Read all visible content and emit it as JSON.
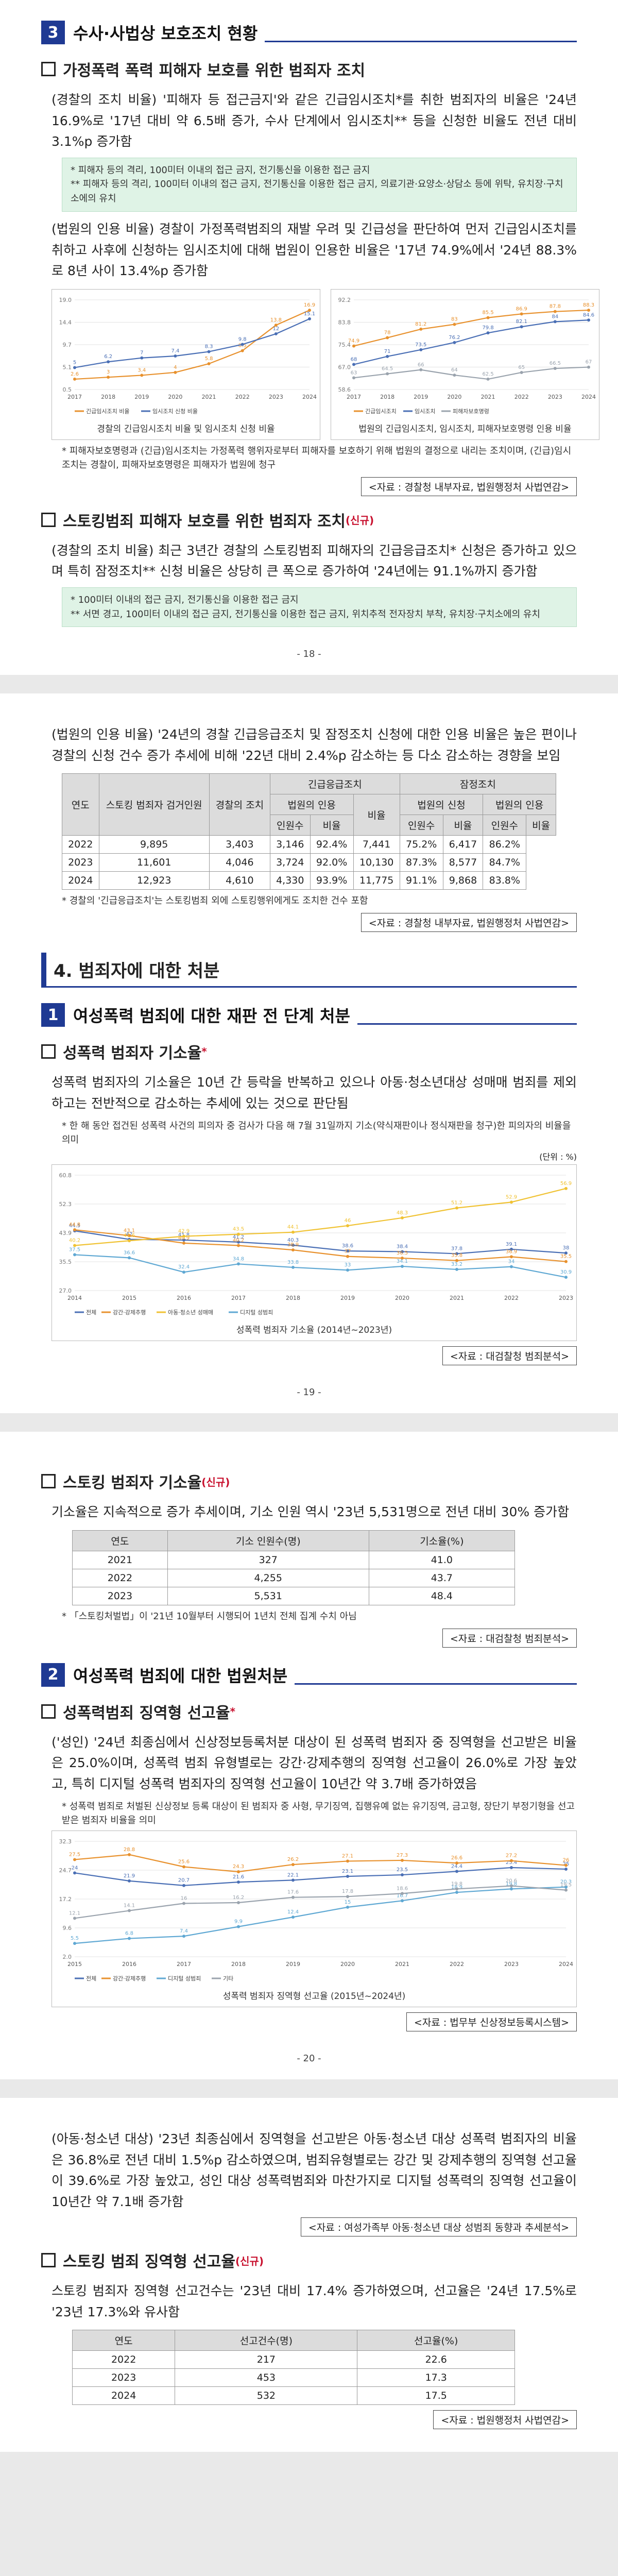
{
  "page18": {
    "section_num": "3",
    "section_title": "수사·사법상 보호조치 현황",
    "sub1": "가정폭력 폭력 피해자 보호를 위한 범죄자 조치",
    "p1": "(경찰의 조치 비율) '피해자 등 접근금지'와 같은 긴급임시조치*를 취한 범죄자의 비율은 '24년 16.9%로 '17년 대비 약 6.5배 증가, 수사 단계에서 임시조치** 등을 신청한 비율도 전년 대비 3.1%p 증가함",
    "green1": "* 피해자 등의 격리, 100미터 이내의 접근 금지, 전기통신을 이용한 접근 금지\n** 피해자 등의 격리, 100미터 이내의 접근 금지, 전기통신을 이용한 접근 금지, 의료기관·요양소·상담소 등에 위탁, 유치장·구치소에의 유치",
    "p2": "(법원의 인용 비율) 경찰이 가정폭력범죄의 재발 우려 및 긴급성을 판단하여 먼저 긴급임시조치를 취하고 사후에 신청하는 임시조치에 대해 법원이 인용한 비율은 '17년 74.9%에서 '24년 88.3%로 8년 사이 13.4%p 증가함",
    "chart1_caption": "경찰의 긴급임시조치 비율 및 임시조치 신청 비율",
    "chart2_caption": "법원의 긴급임시조치, 임시조치, 피해자보호명령 인용 비율",
    "note1": "* 피해자보호명령과 (긴급)임시조치는 가정폭력 행위자로부터 피해자를 보호하기 위해 법원의 결정으로 내리는 조치이며, (긴급)임시조치는 경찰이, 피해자보호명령은 피해자가 법원에 청구",
    "source1": "<자료 : 경찰청 내부자료, 법원행정처 사법연감>",
    "sub2": "스토킹범죄 피해자 보호를 위한 범죄자 조치",
    "sub2_sup": "(신규)",
    "p3": "(경찰의 조치 비율) 최근 3년간 경찰의 스토킹범죄 피해자의 긴급응급조치* 신청은 증가하고 있으며 특히 잠정조치** 신청 비율은 상당히 큰 폭으로 증가하여 '24년에는 91.1%까지 증가함",
    "green2": "* 100미터 이내의 접근 금지, 전기통신을 이용한 접근 금지\n** 서면 경고, 100미터 이내의 접근 금지, 전기통신을 이용한 접근 금지, 위치추적 전자장치 부착, 유치장·구치소에의 유치",
    "page_num": "- 18 -"
  },
  "page19": {
    "p1": "(법원의 인용 비율) '24년의 경찰 긴급응급조치 및 잠정조치 신청에 대한 인용 비율은 높은 편이나 경찰의 신청 건수 증가 추세에 비해 '22년 대비 2.4%p 감소하는 등 다소 감소하는 경향을 보임",
    "table_headers": [
      "연도",
      "스토킹 범죄자 검거인원(명)",
      "경찰의 조치",
      "긴급응급조치 인원수",
      "긴급응급조치 비율",
      "긴급응급조치 법원인용 인원수",
      "긴급응급조치 법원인용 비율",
      "잠정조치 인원수",
      "잠정조치 비율",
      "잠정조치 법원인용 인원수",
      "잠정조치 법원인용 비율"
    ],
    "table_rows": [
      [
        "2022",
        "9,895",
        "3,403",
        "3,146",
        "92.4%",
        "7,441",
        "75.2%",
        "6,417",
        "86.2%"
      ],
      [
        "2023",
        "11,601",
        "4,046",
        "3,724",
        "92.0%",
        "10,130",
        "87.3%",
        "8,577",
        "84.7%"
      ],
      [
        "2024",
        "12,923",
        "4,610",
        "4,330",
        "93.9%",
        "11,775",
        "91.1%",
        "9,868",
        "83.8%"
      ]
    ],
    "th_year": "연도",
    "th_arrest": "스토킹 범죄자 검거인원",
    "th_police": "경찰의 조치",
    "th_emg": "긴급응급조치",
    "th_tmp": "잠정조치",
    "th_apply": "법원의 신청",
    "th_court": "법원의 인용",
    "th_cnt": "인원수",
    "th_rate": "비율",
    "note": "* 경찰의 '긴급응급조치'는 스토킹범죄 외에 스토킹행위에게도 조치한 건수 포함",
    "source": "<자료 : 경찰청 내부자료, 법원행정처 사법연감>",
    "chapter": "4. 범죄자에 대한 처분",
    "sec_num": "1",
    "sec_title": "여성폭력 범죄에 대한 재판 전 단계 처분",
    "sub": "성폭력 범죄자 기소율",
    "sub_sup": "*",
    "p2": "성폭력 범죄자의 기소율은 10년 간 등락을 반복하고 있으나 아동·청소년대상 성매매 범죄를 제외하고는 전반적으로 감소하는 추세에 있는 것으로 판단됨",
    "note2": "* 한 해 동안 접건된 성폭력 사건의 피의자 중 검사가 다음 해 7월 31일까지 기소(약식재판이나 정식재판을 청구)한 피의자의 비율을 의미",
    "unit": "(단위 : %)",
    "chart_caption": "성폭력 범죄자 기소율 (2014년~2023년)",
    "source2": "<자료 : 대검찰청 범죄분석>",
    "page_num": "- 19 -"
  },
  "page20": {
    "sub1": "스토킹 범죄자 기소율",
    "sub1_sup": "(신규)",
    "p1": "기소율은 지속적으로 증가 추세이며, 기소 인원 역시 '23년 5,531명으로 전년 대비 30% 증가함",
    "t_headers": [
      "연도",
      "기소 인원수(명)",
      "기소율(%)"
    ],
    "t_rows": [
      [
        "2021",
        "327",
        "41.0"
      ],
      [
        "2022",
        "4,255",
        "43.7"
      ],
      [
        "2023",
        "5,531",
        "48.4"
      ]
    ],
    "note1": "* 「스토킹처벌법」이 '21년 10월부터 시행되어 1년치 전체 집계 수치 아님",
    "source1": "<자료 : 대검찰청 범죄분석>",
    "sec_num": "2",
    "sec_title": "여성폭력 범죄에 대한 법원처분",
    "sub2": "성폭력범죄 징역형 선고율",
    "sub2_sup": "*",
    "p2": "('성인) '24년 최종심에서 신상정보등록처분 대상이 된 성폭력 범죄자 중 징역형을 선고받은 비율은 25.0%이며, 성폭력 범죄 유형별로는 강간·강제추행의 징역형 선고율이 26.0%로 가장 높았고, 특히 디지털 성폭력 범죄자의 징역형 선고율이 10년간 약 3.7배 증가하였음",
    "note2": "* 성폭력 범죄로 처벌된 신상정보 등록 대상이 된 범죄자 중 사형, 무기징역, 집행유예 없는 유기징역, 금고형, 장단기 부정기형을 선고받은 범죄자 비율을 의미",
    "chart_caption": "성폭력 범죄자 징역형 선고율 (2015년~2024년)",
    "source2": "<자료 : 법무부 신상정보등록시스템>",
    "page_num": "- 20 -"
  },
  "page21": {
    "p1": "(아동·청소년 대상) '23년 최종심에서 징역형을 선고받은 아동·청소년 대상 성폭력 범죄자의 비율은 36.8%로 전년 대비 1.5%p 감소하였으며, 범죄유형별로는 강간 및 강제추행의 징역형 선고율이 39.6%로 가장 높았고, 성인 대상 성폭력범죄와 마찬가지로 디지털 성폭력의 징역형 선고율이 10년간 약 7.1배 증가함",
    "source1": "<자료 : 여성가족부 아동·청소년 대상 성범죄 동향과 추세분석>",
    "sub": "스토킹 범죄 징역형 선고율",
    "sub_sup": "(신규)",
    "p2": "스토킹 범죄자 징역형 선고건수는 '23년 대비 17.4% 증가하였으며, 선고율은 '24년 17.5%로 '23년 17.3%와 유사함",
    "t_headers": [
      "연도",
      "선고건수(명)",
      "선고율(%)"
    ],
    "t_rows": [
      [
        "2022",
        "217",
        "22.6"
      ],
      [
        "2023",
        "453",
        "17.3"
      ],
      [
        "2024",
        "532",
        "17.5"
      ]
    ],
    "source2": "<자료 : 법원행정처 사법연감>"
  },
  "chart_data": [
    {
      "type": "line",
      "title": "경찰의 긴급임시조치 비율 및 임시조치 신청 비율",
      "x": [
        "2017",
        "2018",
        "2019",
        "2020",
        "2021",
        "2022",
        "2023",
        "2024"
      ],
      "series": [
        {
          "name": "긴급임시조치 비율",
          "values": [
            2.6,
            3.0,
            3.4,
            4.0,
            5.8,
            8.5,
            13.8,
            16.9
          ],
          "color": "#e8912d"
        },
        {
          "name": "임시조치 신청 비율",
          "values": [
            5.0,
            6.2,
            7.0,
            7.4,
            8.3,
            9.8,
            12.0,
            15.1
          ],
          "color": "#4a6fb5"
        }
      ]
    },
    {
      "type": "line",
      "title": "법원의 긴급임시조치, 임시조치, 피해자보호명령 인용 비율",
      "x": [
        "2017",
        "2018",
        "2019",
        "2020",
        "2021",
        "2022",
        "2023",
        "2024"
      ],
      "series": [
        {
          "name": "긴급임시조치",
          "values": [
            74.9,
            78.0,
            81.2,
            83.0,
            85.5,
            86.9,
            87.8,
            88.3
          ],
          "color": "#e8912d"
        },
        {
          "name": "임시조치",
          "values": [
            68.0,
            71.0,
            73.5,
            76.2,
            79.8,
            82.1,
            84.0,
            84.6
          ],
          "color": "#4a6fb5"
        },
        {
          "name": "피해자보호명령",
          "values": [
            63.0,
            64.5,
            66.0,
            64.0,
            62.5,
            65.0,
            66.5,
            67.0
          ],
          "color": "#9aa3ad"
        }
      ]
    },
    {
      "type": "line",
      "title": "성폭력 범죄자 기소율 (2014년~2023년)",
      "x": [
        "2014",
        "2015",
        "2016",
        "2017",
        "2018",
        "2019",
        "2020",
        "2021",
        "2022",
        "2023"
      ],
      "series": [
        {
          "name": "전체",
          "values": [
            44.5,
            42.0,
            41.8,
            41.2,
            40.3,
            38.6,
            38.4,
            37.8,
            39.1,
            38.0
          ],
          "color": "#4a6fb5"
        },
        {
          "name": "강간·강제추행",
          "values": [
            44.8,
            43.1,
            40.9,
            40.2,
            38.9,
            37.0,
            36.5,
            35.8,
            36.9,
            35.5
          ],
          "color": "#e8912d"
        },
        {
          "name": "아동·청소년 성매매",
          "values": [
            40.2,
            41.6,
            42.9,
            43.5,
            44.1,
            46.0,
            48.3,
            51.2,
            52.9,
            56.9
          ],
          "color": "#f0c232"
        },
        {
          "name": "디지털 성범죄",
          "values": [
            37.5,
            36.6,
            32.4,
            34.8,
            33.8,
            33.0,
            34.1,
            33.2,
            34.0,
            30.9
          ],
          "color": "#5fa8d3"
        }
      ]
    },
    {
      "type": "line",
      "title": "성폭력 범죄자 징역형 선고율 (2015년~2024년)",
      "x": [
        "2015",
        "2016",
        "2017",
        "2018",
        "2019",
        "2020",
        "2021",
        "2022",
        "2023",
        "2024"
      ],
      "series": [
        {
          "name": "전체",
          "values": [
            24.0,
            21.9,
            20.7,
            21.6,
            22.1,
            23.1,
            23.5,
            24.4,
            25.4,
            25.0
          ],
          "color": "#4a6fb5"
        },
        {
          "name": "강간·강제추행",
          "values": [
            27.5,
            28.8,
            25.6,
            24.3,
            26.2,
            27.1,
            27.3,
            26.6,
            27.2,
            26.0
          ],
          "color": "#e8912d"
        },
        {
          "name": "디지털 성범죄",
          "values": [
            5.5,
            6.8,
            7.4,
            9.9,
            12.4,
            15.0,
            16.7,
            18.9,
            19.8,
            20.3
          ],
          "color": "#5fa8d3"
        },
        {
          "name": "기타",
          "values": [
            12.1,
            14.1,
            16.0,
            16.2,
            17.6,
            17.8,
            18.6,
            19.8,
            20.6,
            19.5
          ],
          "color": "#9aa3ad"
        }
      ]
    }
  ]
}
